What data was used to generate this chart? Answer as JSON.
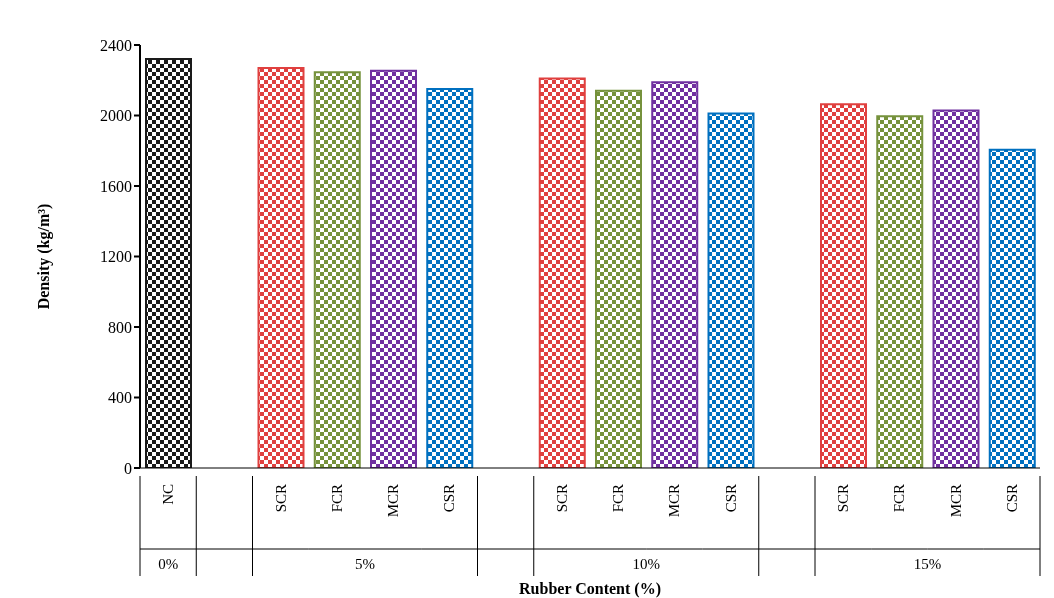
{
  "chart_data": {
    "type": "bar",
    "xlabel": "Rubber Content (%)",
    "ylabel": "Density (kg/m³)",
    "categories": [
      "NC",
      null,
      "SCR",
      "FCR",
      "MCR",
      "CSR",
      null,
      "SCR",
      "FCR",
      "MCR",
      "CSR",
      null,
      "SCR",
      "FCR",
      "MCR",
      "CSR"
    ],
    "values": [
      2320,
      null,
      2270,
      2245,
      2254,
      2150,
      null,
      2210,
      2140,
      2188,
      2012,
      null,
      2064,
      1996,
      2029,
      1805
    ],
    "colors": [
      "#1a1a1a",
      null,
      "#e0403f",
      "#76923c",
      "#7030a0",
      "#0070c0",
      null,
      "#e0403f",
      "#76923c",
      "#7030a0",
      "#0070c0",
      null,
      "#e0403f",
      "#76923c",
      "#7030a0",
      "#0070c0"
    ],
    "annotations": [
      "0%",
      "5%",
      "10%",
      "15%"
    ],
    "ylim": [
      0,
      2400
    ],
    "yticks": [
      0,
      400,
      800,
      1200,
      1600,
      2000,
      2400
    ]
  }
}
